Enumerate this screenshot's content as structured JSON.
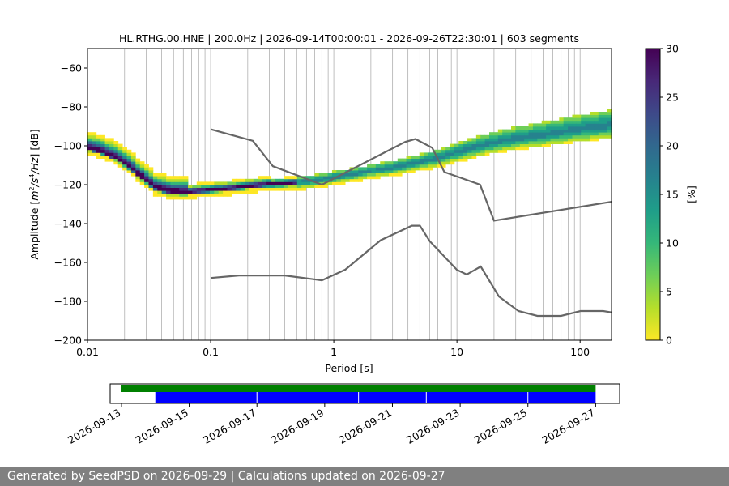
{
  "chart_data": {
    "type": "heatmap",
    "title": "HL.RTHG.00.HNE | 200.0Hz | 2026-09-14T00:00:01 - 2026-09-26T22:30:01 | 603 segments",
    "xlabel": "Period [s]",
    "ylabel_parts": [
      "Amplitude [",
      "m",
      "2",
      "/",
      "s",
      "4",
      "/",
      "Hz",
      "] [dB]"
    ],
    "x_scale": "log",
    "xlim": [
      0.01,
      180
    ],
    "ylim": [
      -200,
      -50
    ],
    "x_ticks": [
      0.01,
      0.1,
      1,
      10,
      100
    ],
    "x_tick_labels": [
      "0.01",
      "0.1",
      "1",
      "10",
      "100"
    ],
    "y_ticks": [
      -200,
      -180,
      -160,
      -140,
      -120,
      -100,
      -80,
      -60
    ],
    "y_tick_labels": [
      "−200",
      "−180",
      "−160",
      "−140",
      "−120",
      "−100",
      "−80",
      "−60"
    ],
    "grid": "x-major-and-minor",
    "colorbar": {
      "label": "[%]",
      "range": [
        0,
        30
      ],
      "ticks": [
        0,
        5,
        10,
        15,
        20,
        25,
        30
      ],
      "tick_labels": [
        "0",
        "5",
        "10",
        "15",
        "20",
        "25",
        "30"
      ],
      "colormap": [
        "#fde725",
        "#b5de2b",
        "#6ece58",
        "#35b779",
        "#1f9e89",
        "#26828e",
        "#31688e",
        "#3e4989",
        "#482878",
        "#440154"
      ]
    },
    "psd_mode": [
      [
        0.01,
        -102
      ],
      [
        0.013,
        -104
      ],
      [
        0.017,
        -107
      ],
      [
        0.022,
        -112
      ],
      [
        0.028,
        -117
      ],
      [
        0.035,
        -122
      ],
      [
        0.045,
        -124
      ],
      [
        0.06,
        -124.5
      ],
      [
        0.08,
        -124
      ],
      [
        0.1,
        -123.5
      ],
      [
        0.15,
        -122.5
      ],
      [
        0.2,
        -121.5
      ],
      [
        0.3,
        -120.5
      ],
      [
        0.5,
        -119.5
      ],
      [
        0.8,
        -118
      ],
      [
        1,
        -117
      ],
      [
        1.5,
        -115
      ],
      [
        2,
        -113.5
      ],
      [
        3,
        -112
      ],
      [
        5,
        -109
      ],
      [
        7,
        -107
      ],
      [
        10,
        -104
      ],
      [
        15,
        -101
      ],
      [
        20,
        -99
      ],
      [
        30,
        -97
      ],
      [
        50,
        -95
      ],
      [
        70,
        -93.5
      ],
      [
        100,
        -92
      ],
      [
        180,
        -90
      ]
    ],
    "nlnm": [
      [
        0.1,
        -168
      ],
      [
        0.17,
        -166.7
      ],
      [
        0.4,
        -166.7
      ],
      [
        0.8,
        -169.2
      ],
      [
        1.24,
        -163.7
      ],
      [
        2.4,
        -148.6
      ],
      [
        4.3,
        -141.1
      ],
      [
        5.0,
        -141.1
      ],
      [
        6.0,
        -149
      ],
      [
        10,
        -163.8
      ],
      [
        12,
        -166.2
      ],
      [
        15.6,
        -162.1
      ],
      [
        21.9,
        -177.5
      ],
      [
        31.6,
        -185
      ],
      [
        45,
        -187.5
      ],
      [
        70,
        -187.5
      ],
      [
        101,
        -185
      ],
      [
        154,
        -185
      ],
      [
        180,
        -185.7
      ]
    ],
    "nhnm": [
      [
        0.1,
        -91.5
      ],
      [
        0.22,
        -97.4
      ],
      [
        0.32,
        -110.5
      ],
      [
        0.8,
        -120
      ],
      [
        3.8,
        -98
      ],
      [
        4.6,
        -96.5
      ],
      [
        6.3,
        -101
      ],
      [
        7.9,
        -113.5
      ],
      [
        15.4,
        -120
      ],
      [
        20,
        -138.5
      ],
      [
        180,
        -128.8
      ]
    ],
    "timeline": {
      "x_tick_labels": [
        "2026-09-13",
        "2026-09-15",
        "2026-09-17",
        "2026-09-19",
        "2026-09-21",
        "2026-09-23",
        "2026-09-25",
        "2026-09-27"
      ],
      "range_start": "2026-09-12T16:00",
      "range_end": "2026-09-27T17:00",
      "data_availability": {
        "start": "2026-09-13T00:00",
        "end": "2026-09-27T00:00",
        "color": "#008000"
      },
      "psd_processed": {
        "start": "2026-09-14T00:00",
        "end": "2026-09-27T00:00",
        "color": "#0000ff"
      },
      "gaps": [
        "2026-09-17T00:00",
        "2026-09-20T00:00",
        "2026-09-22T00:00",
        "2026-09-25T00:00"
      ]
    }
  },
  "footer": "Generated by SeedPSD on 2026-09-29 | Calculations updated on 2026-09-27"
}
